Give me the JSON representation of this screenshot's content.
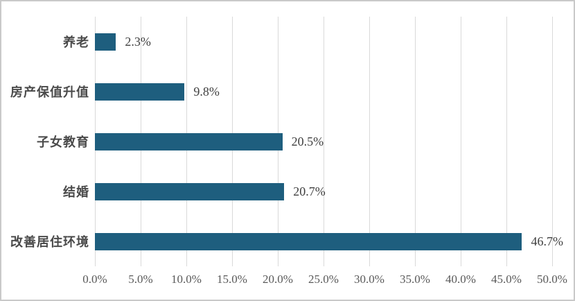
{
  "chart_data": {
    "type": "bar",
    "orientation": "horizontal",
    "title": "",
    "xlabel": "",
    "ylabel": "",
    "categories": [
      "养老",
      "房产保值升值",
      "子女教育",
      "结婚",
      "改善居住环境"
    ],
    "values": [
      2.3,
      9.8,
      20.5,
      20.7,
      46.7
    ],
    "data_labels": [
      "2.3%",
      "9.8%",
      "20.5%",
      "20.7%",
      "46.7%"
    ],
    "x_ticks": [
      "0.0%",
      "5.0%",
      "10.0%",
      "15.0%",
      "20.0%",
      "25.0%",
      "30.0%",
      "35.0%",
      "40.0%",
      "45.0%",
      "50.0%"
    ],
    "xlim": [
      0,
      50
    ],
    "grid": "vertical",
    "legend": "none",
    "colors": {
      "bar_fill": "#1e5e7e",
      "gridline": "#d9d9d9",
      "value_label_text": "#3f3f3f",
      "category_label_text": "#4a4a4a",
      "tick_label_text": "#595959",
      "background": "#ffffff",
      "border": "#c9c9c9"
    }
  }
}
